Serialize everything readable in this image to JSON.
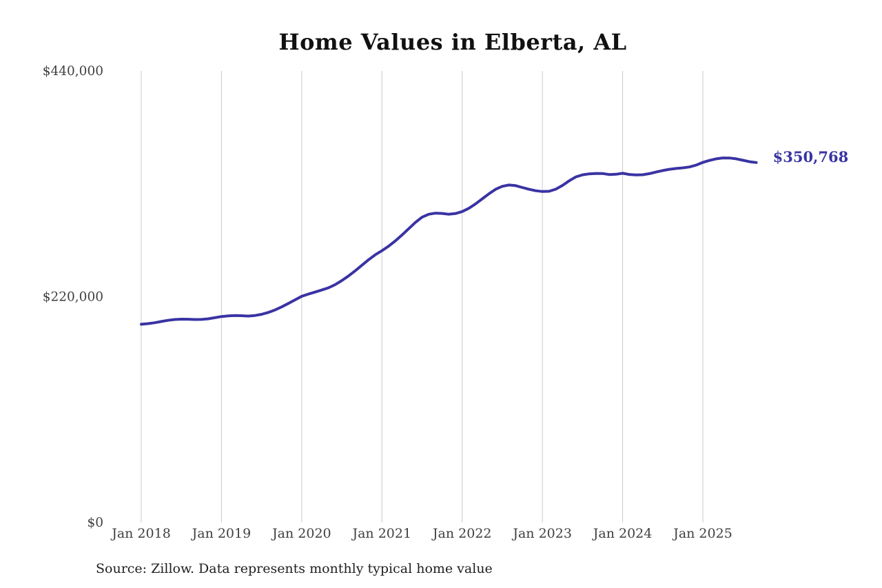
{
  "chart_data": {
    "type": "line",
    "title": "Home Values in Elberta, AL",
    "source_note": "Source: Zillow. Data represents monthly typical home value",
    "series_name": "Monthly typical home value",
    "unit": "USD",
    "ylim": [
      0,
      440000
    ],
    "grid": "vertical-only",
    "legend": "none",
    "end_label": "$350,768",
    "last_value": 350768,
    "y_ticks": [
      {
        "value": 0,
        "label": "$0"
      },
      {
        "value": 220000,
        "label": "$220,000"
      },
      {
        "value": 440000,
        "label": "$440,000"
      }
    ],
    "x_ticks": [
      {
        "label": "Jan 2018",
        "month_index": 0
      },
      {
        "label": "Jan 2019",
        "month_index": 12
      },
      {
        "label": "Jan 2020",
        "month_index": 24
      },
      {
        "label": "Jan 2021",
        "month_index": 36
      },
      {
        "label": "Jan 2022",
        "month_index": 48
      },
      {
        "label": "Jan 2023",
        "month_index": 60
      },
      {
        "label": "Jan 2024",
        "month_index": 72
      },
      {
        "label": "Jan 2025",
        "month_index": 84
      }
    ],
    "x": [
      "Jan 2018",
      "Feb 2018",
      "Mar 2018",
      "Apr 2018",
      "May 2018",
      "Jun 2018",
      "Jul 2018",
      "Aug 2018",
      "Sep 2018",
      "Oct 2018",
      "Nov 2018",
      "Dec 2018",
      "Jan 2019",
      "Feb 2019",
      "Mar 2019",
      "Apr 2019",
      "May 2019",
      "Jun 2019",
      "Jul 2019",
      "Aug 2019",
      "Sep 2019",
      "Oct 2019",
      "Nov 2019",
      "Dec 2019",
      "Jan 2020",
      "Feb 2020",
      "Mar 2020",
      "Apr 2020",
      "May 2020",
      "Jun 2020",
      "Jul 2020",
      "Aug 2020",
      "Sep 2020",
      "Oct 2020",
      "Nov 2020",
      "Dec 2020",
      "Jan 2021",
      "Feb 2021",
      "Mar 2021",
      "Apr 2021",
      "May 2021",
      "Jun 2021",
      "Jul 2021",
      "Aug 2021",
      "Sep 2021",
      "Oct 2021",
      "Nov 2021",
      "Dec 2021",
      "Jan 2022",
      "Feb 2022",
      "Mar 2022",
      "Apr 2022",
      "May 2022",
      "Jun 2022",
      "Jul 2022",
      "Aug 2022",
      "Sep 2022",
      "Oct 2022",
      "Nov 2022",
      "Dec 2022",
      "Jan 2023",
      "Feb 2023",
      "Mar 2023",
      "Apr 2023",
      "May 2023",
      "Jun 2023",
      "Jul 2023",
      "Aug 2023",
      "Sep 2023",
      "Oct 2023",
      "Nov 2023",
      "Dec 2023",
      "Jan 2024",
      "Feb 2024",
      "Mar 2024",
      "Apr 2024",
      "May 2024",
      "Jun 2024",
      "Jul 2024",
      "Aug 2024",
      "Sep 2024",
      "Oct 2024",
      "Nov 2024",
      "Dec 2024",
      "Jan 2025",
      "Feb 2025",
      "Mar 2025",
      "Apr 2025",
      "May 2025",
      "Jun 2025",
      "Jul 2025",
      "Aug 2025",
      "Sep 2025"
    ],
    "values": [
      193200,
      193800,
      194700,
      195900,
      197000,
      197800,
      198200,
      198100,
      197800,
      197900,
      198500,
      199600,
      200700,
      201400,
      201700,
      201500,
      201200,
      201700,
      202900,
      204700,
      207100,
      210100,
      213500,
      217000,
      220500,
      222600,
      224600,
      226600,
      228700,
      231800,
      235800,
      240300,
      245300,
      250700,
      256100,
      260900,
      264900,
      269300,
      274400,
      280200,
      286300,
      292400,
      297500,
      300400,
      301500,
      301200,
      300400,
      301100,
      303000,
      306200,
      310500,
      315400,
      320300,
      324700,
      327600,
      328900,
      328300,
      326500,
      324700,
      323300,
      322600,
      322800,
      324800,
      328500,
      333000,
      336800,
      338800,
      339800,
      340200,
      340100,
      339100,
      339400,
      340300,
      339200,
      338700,
      338900,
      340000,
      341500,
      343000,
      344200,
      345000,
      345600,
      346500,
      348300,
      350900,
      352900,
      354400,
      355300,
      355200,
      354400,
      353000,
      351600,
      350768
    ],
    "colors": {
      "line": "#3a33a3",
      "end_label": "#3a33a3",
      "axis_text": "#3f3f3f",
      "gridline": "#c9c9c9",
      "title": "#111111",
      "source_text": "#1f1f1f",
      "background": "#ffffff"
    }
  }
}
